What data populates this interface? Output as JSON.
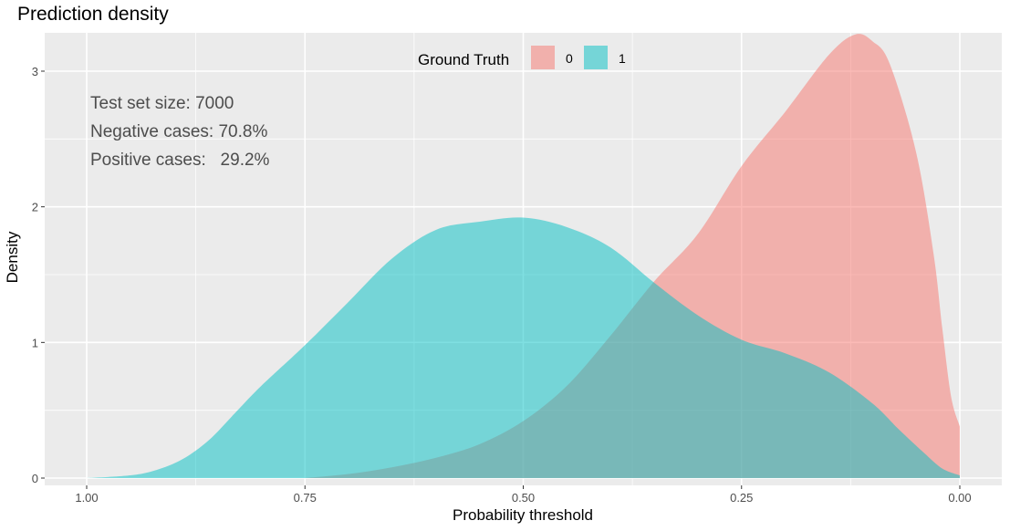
{
  "chart_data": {
    "type": "area",
    "title": "Prediction density",
    "xlabel": "Probability threshold",
    "ylabel": "Density",
    "x_reversed": true,
    "xlim": [
      1.0,
      0.0
    ],
    "ylim": [
      0,
      3.3
    ],
    "x_ticks": [
      "1.00",
      "0.75",
      "0.50",
      "0.25",
      "0.00"
    ],
    "y_ticks": [
      "0",
      "1",
      "2",
      "3"
    ],
    "grid": true,
    "legend": {
      "title": "Ground Truth",
      "position": "top-center",
      "entries": [
        "0",
        "1"
      ]
    },
    "annotations": [
      "Test set size: 7000",
      "Negative cases: 70.8%",
      "Positive cases:   29.2%"
    ],
    "series": [
      {
        "name": "0",
        "color": "#F8766D",
        "x": [
          0.75,
          0.7,
          0.65,
          0.6,
          0.55,
          0.5,
          0.45,
          0.4,
          0.35,
          0.3,
          0.25,
          0.2,
          0.15,
          0.12,
          0.1,
          0.08,
          0.05,
          0.03,
          0.02,
          0.01,
          0.0
        ],
        "y": [
          0.0,
          0.03,
          0.08,
          0.15,
          0.25,
          0.42,
          0.68,
          1.05,
          1.45,
          1.8,
          2.3,
          2.7,
          3.12,
          3.27,
          3.22,
          3.05,
          2.4,
          1.65,
          1.1,
          0.6,
          0.38
        ]
      },
      {
        "name": "1",
        "color": "#00BFC4",
        "x": [
          1.0,
          0.95,
          0.92,
          0.89,
          0.86,
          0.83,
          0.8,
          0.75,
          0.7,
          0.65,
          0.6,
          0.55,
          0.5,
          0.45,
          0.4,
          0.35,
          0.3,
          0.25,
          0.2,
          0.15,
          0.1,
          0.07,
          0.04,
          0.02,
          0.0
        ],
        "y": [
          0.0,
          0.02,
          0.06,
          0.14,
          0.28,
          0.48,
          0.68,
          0.98,
          1.3,
          1.62,
          1.83,
          1.89,
          1.92,
          1.85,
          1.7,
          1.44,
          1.2,
          1.02,
          0.92,
          0.78,
          0.55,
          0.36,
          0.18,
          0.07,
          0.02
        ]
      }
    ]
  }
}
